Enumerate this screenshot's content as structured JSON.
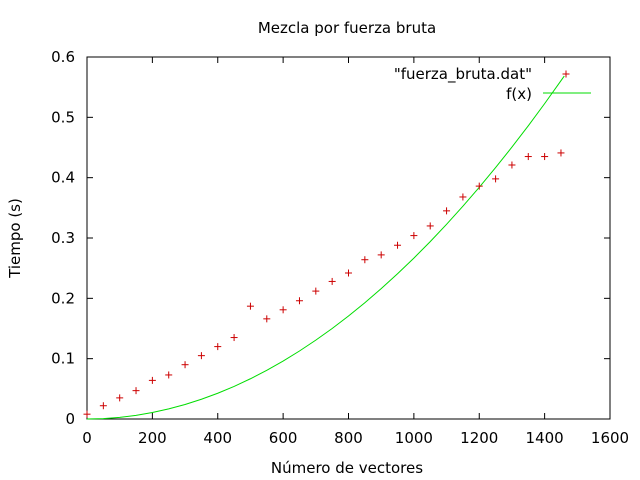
{
  "chart_data": {
    "type": "scatter",
    "title": "Mezcla por fuerza bruta",
    "xlabel": "Número de vectores",
    "ylabel": "Tiempo (s)",
    "xlim": [
      0,
      1600
    ],
    "ylim": [
      0,
      0.6
    ],
    "x_ticks": [
      0,
      200,
      400,
      600,
      800,
      1000,
      1200,
      1400,
      1600
    ],
    "y_ticks": [
      0,
      0.1,
      0.2,
      0.3,
      0.4,
      0.5,
      0.6
    ],
    "x_tick_labels": [
      "0",
      "200",
      "400",
      "600",
      "800",
      "1000",
      "1200",
      "1400",
      "1600"
    ],
    "y_tick_labels": [
      "0",
      "0.1",
      "0.2",
      "0.3",
      "0.4",
      "0.5",
      "0.6"
    ],
    "legend_position": "top-right",
    "grid": false,
    "series": [
      {
        "name": "\"fuerza_bruta.dat\"",
        "style": "points",
        "marker": "plus",
        "color": "#cc0000",
        "x": [
          0,
          50,
          100,
          150,
          200,
          250,
          300,
          350,
          400,
          450,
          500,
          550,
          600,
          650,
          700,
          750,
          800,
          850,
          900,
          950,
          1000,
          1050,
          1100,
          1150,
          1200,
          1250,
          1300,
          1350,
          1400,
          1450
        ],
        "y": [
          0.008,
          0.022,
          0.035,
          0.047,
          0.064,
          0.073,
          0.09,
          0.105,
          0.12,
          0.135,
          0.187,
          0.166,
          0.181,
          0.196,
          0.212,
          0.228,
          0.242,
          0.264,
          0.272,
          0.288,
          0.304,
          0.32,
          0.345,
          0.368,
          0.386,
          0.398,
          0.421,
          0.435,
          0.435,
          0.441
        ]
      },
      {
        "name": "f(x)",
        "style": "line",
        "color": "#00dd00",
        "x": [
          0,
          50,
          100,
          150,
          200,
          250,
          300,
          350,
          400,
          450,
          500,
          550,
          600,
          650,
          700,
          750,
          800,
          850,
          900,
          950,
          1000,
          1050,
          1100,
          1150,
          1200,
          1250,
          1300,
          1350,
          1400,
          1450,
          1460
        ],
        "y": [
          0,
          0.0007,
          0.0027,
          0.006,
          0.0107,
          0.0167,
          0.024,
          0.0327,
          0.0427,
          0.054,
          0.0667,
          0.0807,
          0.096,
          0.1127,
          0.1307,
          0.15,
          0.1707,
          0.1927,
          0.216,
          0.2407,
          0.2667,
          0.294,
          0.3227,
          0.3527,
          0.384,
          0.4167,
          0.4507,
          0.486,
          0.5227,
          0.5607,
          0.5684
        ]
      }
    ]
  }
}
